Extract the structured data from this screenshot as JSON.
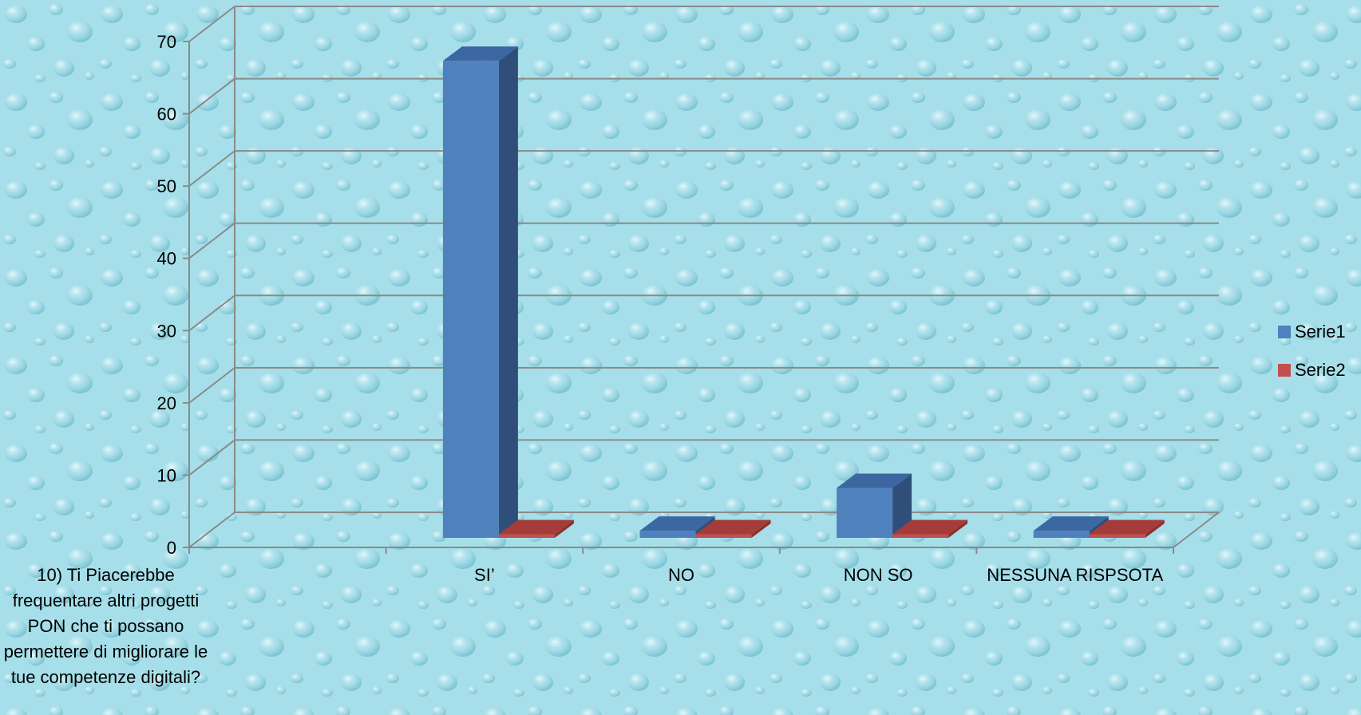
{
  "chart_data": {
    "type": "bar",
    "style": "3d-clustered-column",
    "categories": [
      "10) Ti Piacerebbe frequentare altri progetti PON che ti possano permettere di migliorare le tue competenze digitali?",
      "SI’",
      "NO",
      "NON SO",
      "NESSUNA RISPSOTA"
    ],
    "series": [
      {
        "name": "Serie1",
        "values": [
          null,
          67,
          1,
          7,
          1
        ]
      },
      {
        "name": "Serie2",
        "values": [
          null,
          0.5,
          0.5,
          0.5,
          0.5
        ]
      }
    ],
    "yticks": [
      0,
      10,
      20,
      30,
      40,
      50,
      60,
      70
    ],
    "ylim": [
      0,
      70
    ],
    "grid": true,
    "legend": "right",
    "colors": {
      "series1_front": "#4f81bd",
      "series1_side": "#2f4f7a",
      "series1_top": "#3d67a0",
      "series2_front": "#c0504d",
      "series2_side": "#8e2f2c",
      "series2_top": "#a63c39",
      "gridline": "#8a8a8a",
      "background": "#a3dde8"
    }
  }
}
